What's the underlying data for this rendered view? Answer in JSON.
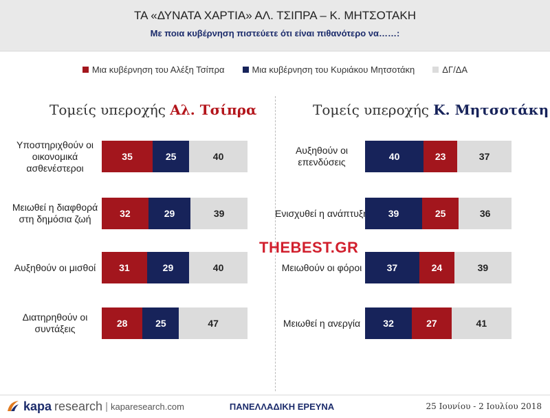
{
  "header": {
    "title": "ΤΑ «ΔΥΝΑΤΑ ΧΑΡΤΙΑ» ΑΛ. ΤΣΙΠΡΑ – Κ. ΜΗΤΣΟΤΑΚΗ",
    "subtitle": "Με ποια κυβέρνηση πιστεύετε ότι είναι πιθανότερο να……:"
  },
  "colors": {
    "tsipras": "#a3161d",
    "mitsotakis": "#17235a",
    "dkda": "#dcdcdc",
    "tsipras_title": "#b3151b",
    "mitsotakis_title": "#17235a"
  },
  "legend": [
    {
      "label": "Μια κυβέρνηση του Αλέξη Τσίπρα",
      "color": "#a3161d"
    },
    {
      "label": "Μια κυβέρνηση του Κυριάκου Μητσοτάκη",
      "color": "#17235a"
    },
    {
      "label": "ΔΓ/ΔΑ",
      "color": "#dcdcdc"
    }
  ],
  "left_section": {
    "prefix": "Τομείς υπεροχής ",
    "name": "Αλ. Τσίπρα"
  },
  "right_section": {
    "prefix": "Τομείς υπεροχής ",
    "name": "Κ. Μητσοτάκη"
  },
  "watermark": {
    "part1": "THE",
    "part2": "BEST.GR"
  },
  "footer": {
    "logo_main": "kapa",
    "logo_rs": "research",
    "separator": "|",
    "url": "kaparesearch.com",
    "survey": "ΠΑΝΕΛΛΑΔΙΚΗ ΕΡΕΥΝΑ",
    "dates": "25 Ιουνίου - 2 Ιουλίου 2018"
  },
  "chart_data": [
    {
      "type": "bar",
      "stacked": true,
      "orientation": "horizontal",
      "title": "Τομείς υπεροχής Αλ. Τσίπρα",
      "categories": [
        "Υποστηριχθούν οι οικονομικά ασθενέστεροι",
        "Μειωθεί η διαφθορά στη δημόσια ζωή",
        "Αυξηθούν οι μισθοί",
        "Διατηρηθούν οι συντάξεις"
      ],
      "series": [
        {
          "name": "Μια κυβέρνηση του Αλέξη Τσίπρα",
          "values": [
            35,
            32,
            31,
            28
          ]
        },
        {
          "name": "Μια κυβέρνηση του Κυριάκου Μητσοτάκη",
          "values": [
            25,
            29,
            29,
            25
          ]
        },
        {
          "name": "ΔΓ/ΔΑ",
          "values": [
            40,
            39,
            40,
            47
          ]
        }
      ]
    },
    {
      "type": "bar",
      "stacked": true,
      "orientation": "horizontal",
      "title": "Τομείς υπεροχής Κ. Μητσοτάκη",
      "categories": [
        "Αυξηθούν οι επενδύσεις",
        "Ενισχυθεί η ανάπτυξη",
        "Μειωθούν οι φόροι",
        "Μειωθεί η ανεργία"
      ],
      "series": [
        {
          "name": "Μια κυβέρνηση του Κυριάκου Μητσοτάκη",
          "values": [
            40,
            39,
            37,
            32
          ]
        },
        {
          "name": "Μια κυβέρνηση του Αλέξη Τσίπρα",
          "values": [
            23,
            25,
            24,
            27
          ]
        },
        {
          "name": "ΔΓ/ΔΑ",
          "values": [
            37,
            36,
            39,
            41
          ]
        }
      ]
    }
  ]
}
